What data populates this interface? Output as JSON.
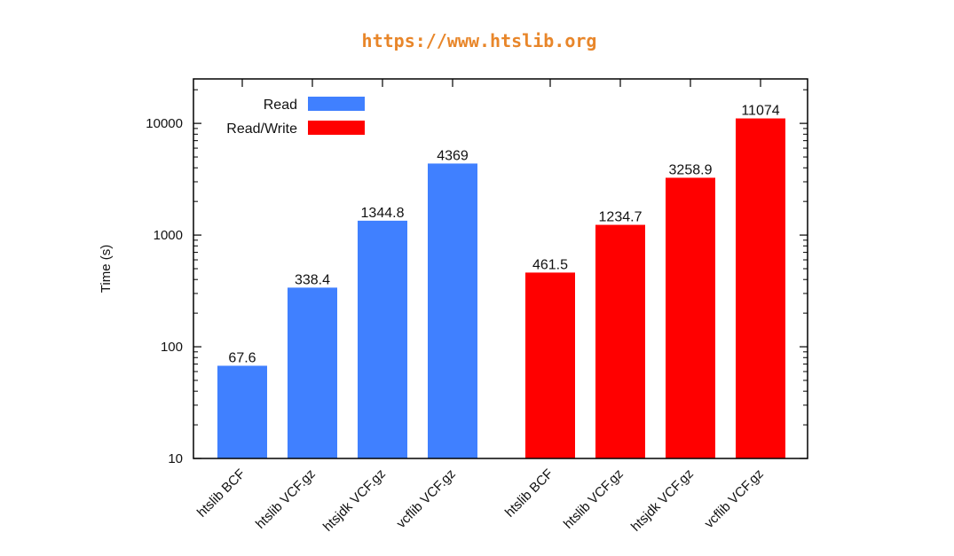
{
  "header": {
    "url": "https://www.htslib.org"
  },
  "chart_data": {
    "type": "bar",
    "title": "",
    "xlabel": "",
    "ylabel": "Time (s)",
    "yscale": "log",
    "ylim": [
      10,
      25000
    ],
    "yticks": [
      "10",
      "100",
      "1000",
      "10000"
    ],
    "legend_position": "top-left",
    "series": [
      {
        "name": "Read",
        "color": "#4080ff",
        "categories": [
          "htslib BCF",
          "htslib VCF.gz",
          "htsjdk VCF.gz",
          "vcflib VCF.gz"
        ],
        "values": [
          67.6,
          338.4,
          1344.8,
          4369
        ],
        "labels": [
          "67.6",
          "338.4",
          "1344.8",
          "4369"
        ]
      },
      {
        "name": "Read/Write",
        "color": "#ff0000",
        "categories": [
          "htslib BCF",
          "htslib VCF.gz",
          "htsjdk VCF.gz",
          "vcflib VCF.gz"
        ],
        "values": [
          461.5,
          1234.7,
          3258.9,
          11074
        ],
        "labels": [
          "461.5",
          "1234.7",
          "3258.9",
          "11074"
        ]
      }
    ]
  }
}
